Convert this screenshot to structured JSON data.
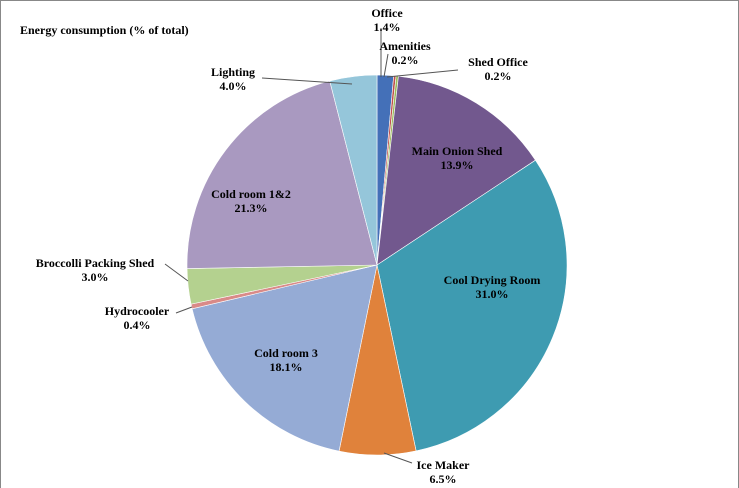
{
  "chart_data": {
    "type": "pie",
    "title": "Energy consumption (% of total)",
    "categories": [
      "Office",
      "Amenities",
      "Shed Office",
      "Main Onion Shed",
      "Cool Drying Room",
      "Ice Maker",
      "Cold room 3",
      "Hydrocooler",
      "Broccolli Packing Shed",
      "Cold room 1&2",
      "Lighting"
    ],
    "values": [
      1.4,
      0.2,
      0.2,
      13.9,
      31.0,
      6.5,
      18.1,
      0.4,
      3.0,
      21.3,
      4.0
    ],
    "value_labels": [
      "1.4%",
      "0.2%",
      "0.2%",
      "13.9%",
      "31.0%",
      "6.5%",
      "18.1%",
      "0.4%",
      "3.0%",
      "21.3%",
      "4.0%"
    ],
    "colors": [
      "#4470b8",
      "#c0504d",
      "#9bbb59",
      "#72588e",
      "#3e9bb1",
      "#e0823b",
      "#95abd5",
      "#d98a88",
      "#b4d18f",
      "#a999c0",
      "#95c6da"
    ]
  }
}
